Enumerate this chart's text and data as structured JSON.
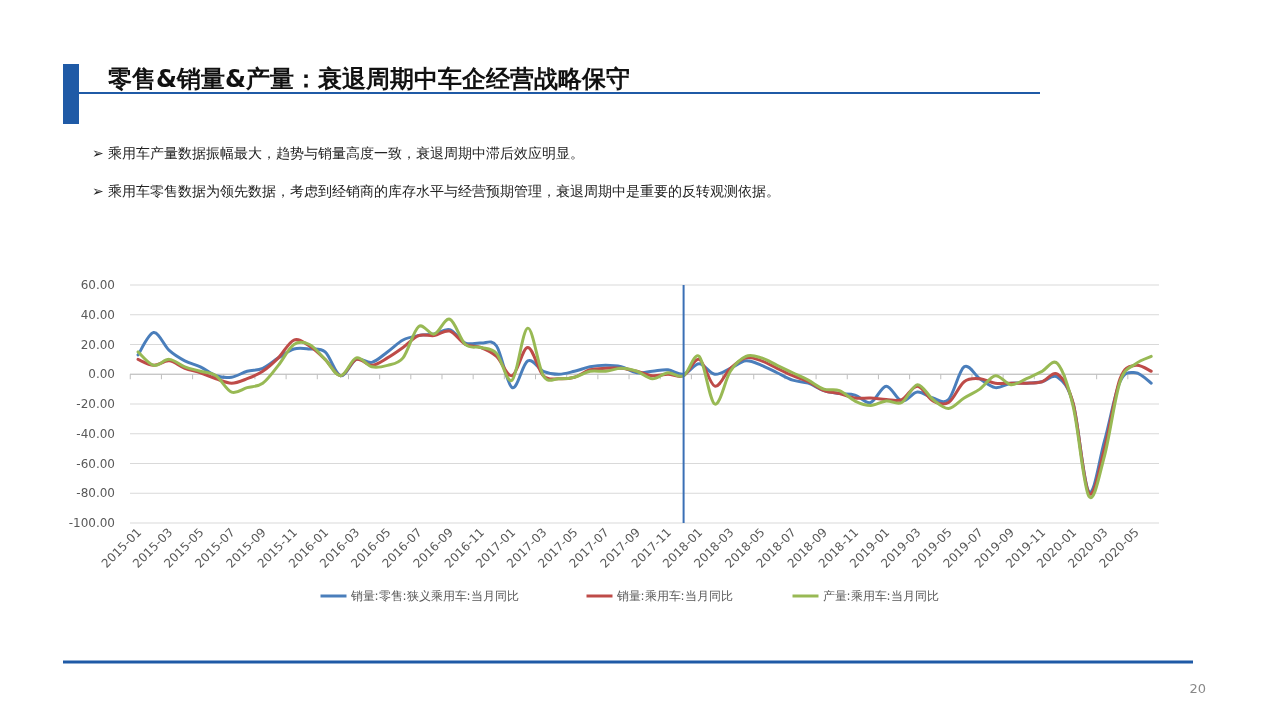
{
  "chart_data": {
    "type": "line",
    "title": "零售&销量&产量：衰退周期中车企经营战略保守",
    "annotations": [
      "➢ 乘用车产量数据振幅最大，趋势与销量高度一致，衰退周期中滞后效应明显。",
      "➢ 乘用车零售数据为领先数据，考虑到经销商的库存水平与经营预期管理，衰退周期中是重要的反转观测依据。",
      "20"
    ],
    "x": [
      "2015-01",
      "2015-02",
      "2015-03",
      "2015-04",
      "2015-05",
      "2015-06",
      "2015-07",
      "2015-08",
      "2015-09",
      "2015-10",
      "2015-11",
      "2015-12",
      "2016-01",
      "2016-02",
      "2016-03",
      "2016-04",
      "2016-05",
      "2016-06",
      "2016-07",
      "2016-08",
      "2016-09",
      "2016-10",
      "2016-11",
      "2016-12",
      "2017-01",
      "2017-02",
      "2017-03",
      "2017-04",
      "2017-05",
      "2017-06",
      "2017-07",
      "2017-08",
      "2017-09",
      "2017-10",
      "2017-11",
      "2017-12",
      "2018-01",
      "2018-02",
      "2018-03",
      "2018-04",
      "2018-05",
      "2018-06",
      "2018-07",
      "2018-08",
      "2018-09",
      "2018-10",
      "2018-11",
      "2018-12",
      "2019-01",
      "2019-02",
      "2019-03",
      "2019-04",
      "2019-05",
      "2019-06",
      "2019-07",
      "2019-08",
      "2019-09",
      "2019-10",
      "2019-11",
      "2019-12",
      "2020-01",
      "2020-02",
      "2020-03",
      "2020-04",
      "2020-05",
      "2020-06"
    ],
    "series": [
      {
        "name": "销量:零售:狭义乘用车:当月同比",
        "color": "#4a7ebb",
        "values": [
          13,
          28,
          16,
          9,
          5,
          -1,
          -2,
          2,
          4,
          11,
          17,
          17,
          15,
          -1,
          10,
          8,
          15,
          23,
          26,
          27,
          30,
          21,
          21,
          19,
          -9,
          9,
          2,
          0,
          2,
          5,
          6,
          5,
          1,
          2,
          3,
          0,
          7,
          0,
          4,
          9,
          6,
          1,
          -4,
          -6,
          -11,
          -13,
          -14,
          -19,
          -8,
          -18,
          -12,
          -16,
          -17,
          5,
          -3,
          -9,
          -6,
          -6,
          -5,
          -2,
          -20,
          -79,
          -45,
          -5,
          1,
          -6
        ]
      },
      {
        "name": "销量:乘用车:当月同比",
        "color": "#be4b48",
        "values": [
          10,
          6,
          9,
          4,
          1,
          -3,
          -6,
          -3,
          2,
          11,
          23,
          19,
          10,
          -1,
          10,
          6,
          11,
          18,
          26,
          26,
          29,
          20,
          18,
          12,
          -1,
          18,
          -1,
          -3,
          -2,
          3,
          4,
          4,
          2,
          -1,
          0,
          -1,
          10,
          -8,
          4,
          11,
          9,
          4,
          -1,
          -5,
          -11,
          -13,
          -16,
          -16,
          -17,
          -17,
          -8,
          -18,
          -19,
          -5,
          -3,
          -6,
          -6,
          -6,
          -5,
          0,
          -20,
          -80,
          -50,
          -3,
          6,
          2
        ]
      },
      {
        "name": "产量:乘用车:当月同比",
        "color": "#98b954",
        "values": [
          15,
          6,
          10,
          5,
          2,
          -1,
          -12,
          -9,
          -6,
          6,
          20,
          20,
          10,
          -1,
          11,
          5,
          6,
          11,
          32,
          27,
          37,
          20,
          18,
          14,
          -4,
          31,
          -1,
          -3,
          -2,
          2,
          2,
          4,
          2,
          -3,
          1,
          -1,
          12,
          -20,
          2,
          12,
          11,
          6,
          1,
          -4,
          -10,
          -11,
          -18,
          -21,
          -18,
          -19,
          -7,
          -17,
          -23,
          -16,
          -10,
          -1,
          -7,
          -3,
          2,
          7,
          -22,
          -82,
          -55,
          -5,
          7,
          12
        ]
      }
    ],
    "xlim": [
      "2014-12-16",
      "2020-06-16"
    ],
    "xticks": [
      "2015-01",
      "2015-03",
      "2015-05",
      "2015-07",
      "2015-09",
      "2015-11",
      "2016-01",
      "2016-03",
      "2016-05",
      "2016-07",
      "2016-09",
      "2016-11",
      "2017-01",
      "2017-03",
      "2017-05",
      "2017-07",
      "2017-09",
      "2017-11",
      "2018-01",
      "2018-03",
      "2018-05",
      "2018-07",
      "2018-09",
      "2018-11",
      "2019-01",
      "2019-03",
      "2019-05",
      "2019-07",
      "2019-09",
      "2019-11",
      "2020-01",
      "2020-03",
      "2020-05"
    ],
    "ylim": [
      -100,
      60
    ],
    "yticks": [
      {
        "value": -100,
        "label": "-100.00"
      },
      {
        "value": -80,
        "label": "-80.00"
      },
      {
        "value": -60,
        "label": "-60.00"
      },
      {
        "value": -40,
        "label": "-40.00"
      },
      {
        "value": -20,
        "label": "-20.00"
      },
      {
        "value": 0,
        "label": "0.00"
      },
      {
        "value": 20,
        "label": "20.00"
      },
      {
        "value": 40,
        "label": "40.00"
      },
      {
        "value": 60,
        "label": "60.00"
      }
    ],
    "ref_lines": [
      {
        "axis": "x",
        "value": "2017-12",
        "color": "#3a6fb5"
      }
    ],
    "grid": "y",
    "legend": "bottom",
    "marker": "none",
    "line_style": "solid"
  }
}
